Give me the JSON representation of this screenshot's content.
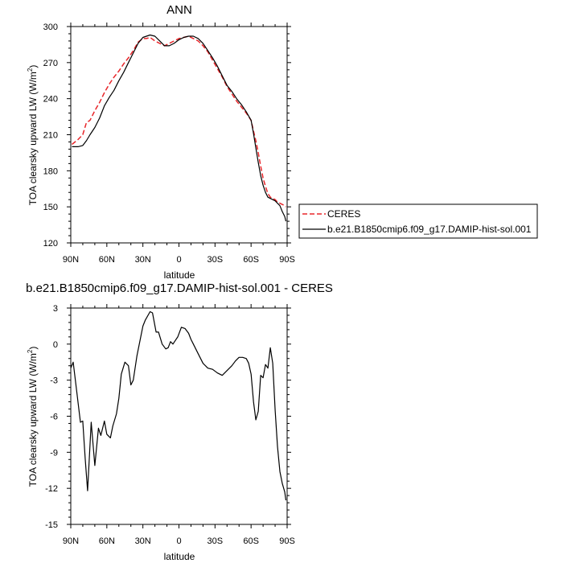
{
  "colors": {
    "ceres": "#e8262a",
    "model": "#000000",
    "axis": "#000000",
    "background": "#ffffff"
  },
  "chart_data": [
    {
      "type": "line",
      "title": "ANN",
      "xlabel": "latitude",
      "ylabel_main": "TOA clearsky upward LW (W/m",
      "ylabel_sup": "2",
      "ylabel_close": ")",
      "xlim": [
        90,
        -90
      ],
      "ylim": [
        120,
        300
      ],
      "x_ticks": [
        {
          "value": 90,
          "label": "90N"
        },
        {
          "value": 60,
          "label": "60N"
        },
        {
          "value": 30,
          "label": "30N"
        },
        {
          "value": 0,
          "label": "0"
        },
        {
          "value": -30,
          "label": "30S"
        },
        {
          "value": -60,
          "label": "60S"
        },
        {
          "value": -90,
          "label": "90S"
        }
      ],
      "y_ticks": [
        {
          "value": 120,
          "label": "120"
        },
        {
          "value": 150,
          "label": "150"
        },
        {
          "value": 180,
          "label": "180"
        },
        {
          "value": 210,
          "label": "210"
        },
        {
          "value": 240,
          "label": "240"
        },
        {
          "value": 270,
          "label": "270"
        },
        {
          "value": 300,
          "label": "300"
        }
      ],
      "legend_position": "right",
      "series": [
        {
          "name": "CERES",
          "style": "dashed",
          "color": "#e8262a",
          "x": [
            89,
            84,
            80,
            77,
            74,
            70,
            66,
            62,
            58,
            54,
            50,
            46,
            42,
            38,
            34,
            30,
            27,
            24,
            20,
            16,
            12,
            8,
            4,
            0,
            -4,
            -8,
            -12,
            -16,
            -20,
            -24,
            -28,
            -32,
            -36,
            -40,
            -44,
            -48,
            -52,
            -56,
            -60,
            -62,
            -64,
            -66,
            -68,
            -70,
            -72,
            -74,
            -76,
            -78,
            -80,
            -82,
            -84,
            -86,
            -88,
            -89
          ],
          "y": [
            202,
            206,
            210,
            220,
            222,
            230,
            237,
            245,
            252,
            258,
            263,
            269,
            274,
            280,
            287,
            290,
            290,
            291,
            288,
            286,
            284,
            286,
            288,
            290,
            291,
            292,
            290,
            288,
            284,
            279,
            272,
            265,
            258,
            250,
            244,
            238,
            233,
            228,
            222,
            213,
            205,
            195,
            184,
            174,
            167,
            161,
            158,
            157,
            156,
            154,
            153,
            152,
            151,
            150
          ]
        },
        {
          "name": "b.e21.B1850cmip6.f09_g17.DAMIP-hist-sol.001",
          "style": "solid",
          "color": "#000000",
          "x": [
            89,
            84,
            80,
            77,
            74,
            70,
            66,
            62,
            58,
            54,
            50,
            46,
            42,
            38,
            34,
            30,
            27,
            24,
            20,
            16,
            12,
            8,
            4,
            0,
            -4,
            -8,
            -12,
            -16,
            -20,
            -24,
            -28,
            -32,
            -36,
            -40,
            -44,
            -48,
            -52,
            -56,
            -60,
            -62,
            -64,
            -66,
            -68,
            -70,
            -72,
            -74,
            -76,
            -78,
            -80,
            -82,
            -84,
            -86,
            -88,
            -89
          ],
          "y": [
            200,
            200,
            201,
            205,
            210,
            216,
            224,
            234,
            241,
            247,
            255,
            262,
            270,
            278,
            286,
            291,
            292,
            293,
            292,
            288,
            284,
            284,
            286,
            289,
            291,
            292,
            292,
            290,
            286,
            280,
            274,
            267,
            259,
            251,
            246,
            240,
            235,
            229,
            222,
            211,
            199,
            187,
            176,
            168,
            162,
            158,
            157,
            156,
            155,
            153,
            151,
            146,
            142,
            138
          ]
        }
      ]
    },
    {
      "type": "line",
      "title": "b.e21.B1850cmip6.f09_g17.DAMIP-hist-sol.001 - CERES",
      "xlabel": "latitude",
      "ylabel_main": "TOA clearsky upward LW (W/m",
      "ylabel_sup": "2",
      "ylabel_close": ")",
      "xlim": [
        90,
        -90
      ],
      "ylim": [
        -15,
        3
      ],
      "x_ticks": [
        {
          "value": 90,
          "label": "90N"
        },
        {
          "value": 60,
          "label": "60N"
        },
        {
          "value": 30,
          "label": "30N"
        },
        {
          "value": 0,
          "label": "0"
        },
        {
          "value": -30,
          "label": "30S"
        },
        {
          "value": -60,
          "label": "60S"
        },
        {
          "value": -90,
          "label": "90S"
        }
      ],
      "y_ticks": [
        {
          "value": 3,
          "label": "3"
        },
        {
          "value": 0,
          "label": "0"
        },
        {
          "value": -3,
          "label": "-3"
        },
        {
          "value": -6,
          "label": "-6"
        },
        {
          "value": -9,
          "label": "-9"
        },
        {
          "value": -12,
          "label": "-12"
        },
        {
          "value": -15,
          "label": "-15"
        }
      ],
      "series": [
        {
          "style": "solid",
          "color": "#000000",
          "x": [
            90,
            88,
            85,
            82,
            80,
            78,
            76,
            73,
            70,
            67,
            65,
            62,
            60,
            57,
            55,
            52,
            50,
            48,
            45,
            42,
            40,
            38,
            35,
            33,
            30,
            28,
            24,
            22,
            19,
            17,
            14,
            11,
            9,
            7,
            5,
            3,
            1,
            -2,
            -5,
            -8,
            -10,
            -12,
            -16,
            -20,
            -24,
            -28,
            -32,
            -36,
            -40,
            -44,
            -47,
            -50,
            -53,
            -56,
            -58,
            -60,
            -62,
            -64,
            -66,
            -68,
            -70,
            -72,
            -74,
            -76,
            -78,
            -80,
            -82,
            -84,
            -86,
            -88,
            -89
          ],
          "y": [
            -2,
            -1.5,
            -4,
            -6.5,
            -6.4,
            -9.5,
            -12.2,
            -6.5,
            -10.1,
            -7.0,
            -7.6,
            -6.4,
            -7.5,
            -7.8,
            -6.8,
            -5.8,
            -4.5,
            -2.5,
            -1.5,
            -1.8,
            -3.4,
            -3.0,
            -1.0,
            0,
            1.5,
            2.0,
            2.7,
            2.6,
            1.0,
            1.0,
            0,
            -0.4,
            -0.3,
            0.2,
            0,
            0.3,
            0.6,
            1.4,
            1.3,
            0.9,
            0.4,
            0,
            -0.8,
            -1.6,
            -2.0,
            -2.1,
            -2.4,
            -2.6,
            -2.2,
            -1.8,
            -1.4,
            -1.1,
            -1.1,
            -1.2,
            -1.6,
            -2.5,
            -4.8,
            -6.3,
            -5.6,
            -2.6,
            -2.8,
            -1.7,
            -2.0,
            -0.3,
            -1.6,
            -5.5,
            -8.5,
            -10.6,
            -11.6,
            -12.3,
            -13.0
          ]
        }
      ]
    }
  ]
}
